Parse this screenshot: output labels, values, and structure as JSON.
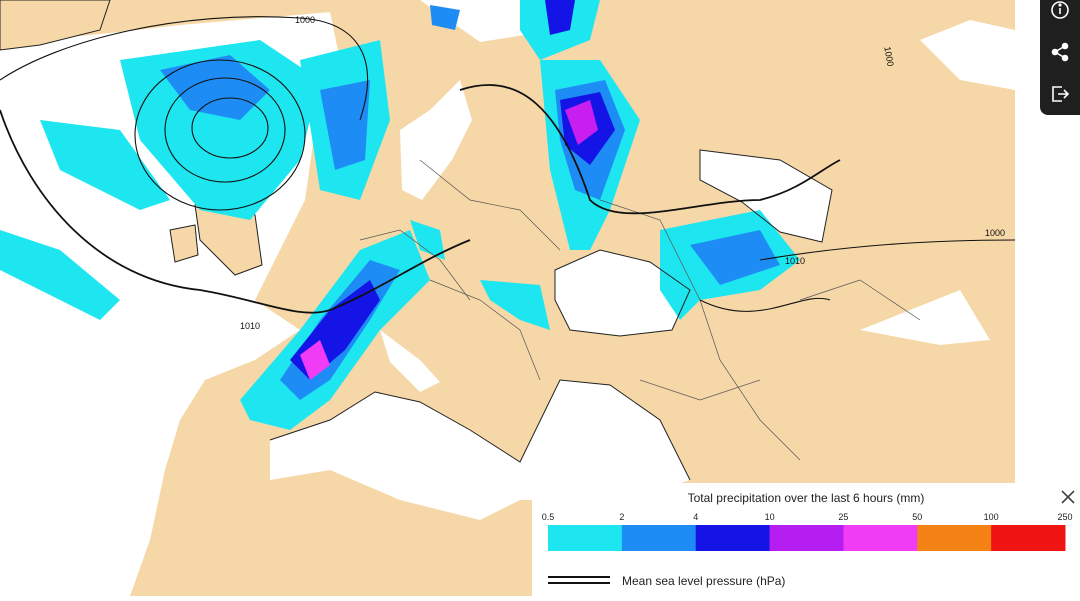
{
  "map": {
    "isobar_labels": [
      "1000",
      "1010",
      "1010",
      "1000",
      "1000"
    ]
  },
  "legend": {
    "title": "Total precipitation over the last 6 hours (mm)",
    "ticks": [
      "0.5",
      "2",
      "4",
      "10",
      "25",
      "50",
      "100",
      "250"
    ],
    "colors": [
      "#1ee6f0",
      "#1e8cf5",
      "#1414e6",
      "#b41ef0",
      "#f03cf5",
      "#f58214",
      "#f01414"
    ]
  },
  "pressure_legend": {
    "label": "Mean sea level pressure (hPa)"
  }
}
